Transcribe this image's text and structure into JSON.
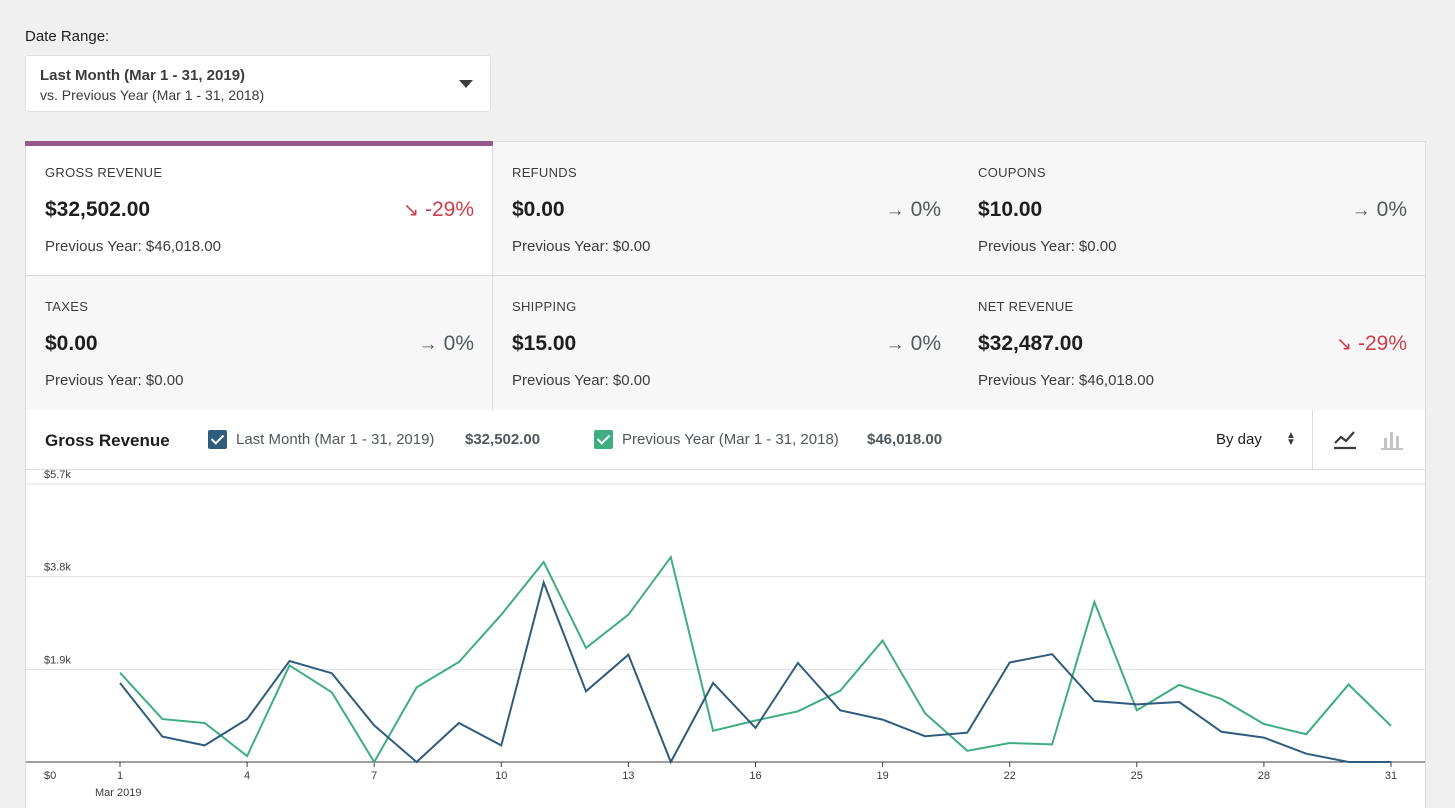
{
  "date_range": {
    "label": "Date Range:",
    "primary": "Last Month (Mar 1 - 31, 2019)",
    "secondary": "vs. Previous Year (Mar 1 - 31, 2018)",
    "icon": "caret-down-icon"
  },
  "summary": [
    {
      "label": "GROSS REVENUE",
      "value": "$32,502.00",
      "delta": "-29%",
      "trend": "down",
      "prev": "Previous Year: $46,018.00",
      "selected": true
    },
    {
      "label": "REFUNDS",
      "value": "$0.00",
      "delta": "0%",
      "trend": "flat",
      "prev": "Previous Year: $0.00"
    },
    {
      "label": "COUPONS",
      "value": "$10.00",
      "delta": "0%",
      "trend": "flat",
      "prev": "Previous Year: $0.00"
    },
    {
      "label": "TAXES",
      "value": "$0.00",
      "delta": "0%",
      "trend": "flat",
      "prev": "Previous Year: $0.00"
    },
    {
      "label": "SHIPPING",
      "value": "$15.00",
      "delta": "0%",
      "trend": "flat",
      "prev": "Previous Year: $0.00"
    },
    {
      "label": "NET REVENUE",
      "value": "$32,487.00",
      "delta": "-29%",
      "trend": "down",
      "prev": "Previous Year: $46,018.00"
    }
  ],
  "chart_header": {
    "title": "Gross Revenue",
    "legend": [
      {
        "label": "Last Month (Mar 1 - 31, 2019)",
        "total": "$32,502.00",
        "color": "#2f5c7d",
        "checked": true
      },
      {
        "label": "Previous Year (Mar 1 - 31, 2018)",
        "total": "$46,018.00",
        "color": "#3fad80",
        "checked": true
      }
    ],
    "interval": "By day",
    "chart_types": [
      "line-chart-icon",
      "bar-chart-icon"
    ]
  },
  "colors": {
    "accent": "#95598b",
    "negative": "#cc3e49",
    "series_current": "#2f5c7d",
    "series_previous": "#3fad80"
  },
  "chart_data": {
    "type": "line",
    "title": "Gross Revenue",
    "x": [
      1,
      2,
      3,
      4,
      5,
      6,
      7,
      8,
      9,
      10,
      11,
      12,
      13,
      14,
      15,
      16,
      17,
      18,
      19,
      20,
      21,
      22,
      23,
      24,
      25,
      26,
      27,
      28,
      29,
      30,
      31
    ],
    "x_ticks": [
      "1",
      "4",
      "7",
      "10",
      "13",
      "16",
      "19",
      "22",
      "25",
      "28",
      "31"
    ],
    "x_sublabel": "Mar 2019",
    "y_ticks": [
      "$0",
      "$1.9k",
      "$3.8k",
      "$5.7k"
    ],
    "ylim": [
      0,
      5700
    ],
    "series": [
      {
        "name": "Last Month (Mar 1 - 31, 2019)",
        "color": "#2f5c7d",
        "values": [
          1620,
          520,
          340,
          880,
          2070,
          1820,
          750,
          0,
          800,
          340,
          3680,
          1450,
          2200,
          0,
          1620,
          700,
          2030,
          1060,
          870,
          530,
          600,
          2040,
          2210,
          1250,
          1180,
          1230,
          620,
          500,
          170,
          0,
          0
        ]
      },
      {
        "name": "Previous Year (Mar 1 - 31, 2018)",
        "color": "#3fad80",
        "values": [
          1830,
          880,
          800,
          120,
          1980,
          1430,
          0,
          1530,
          2050,
          3020,
          4100,
          2340,
          3020,
          4200,
          640,
          850,
          1040,
          1460,
          2490,
          1000,
          230,
          390,
          360,
          3280,
          1060,
          1580,
          1290,
          780,
          570,
          1590,
          740
        ]
      }
    ],
    "grid": true
  }
}
